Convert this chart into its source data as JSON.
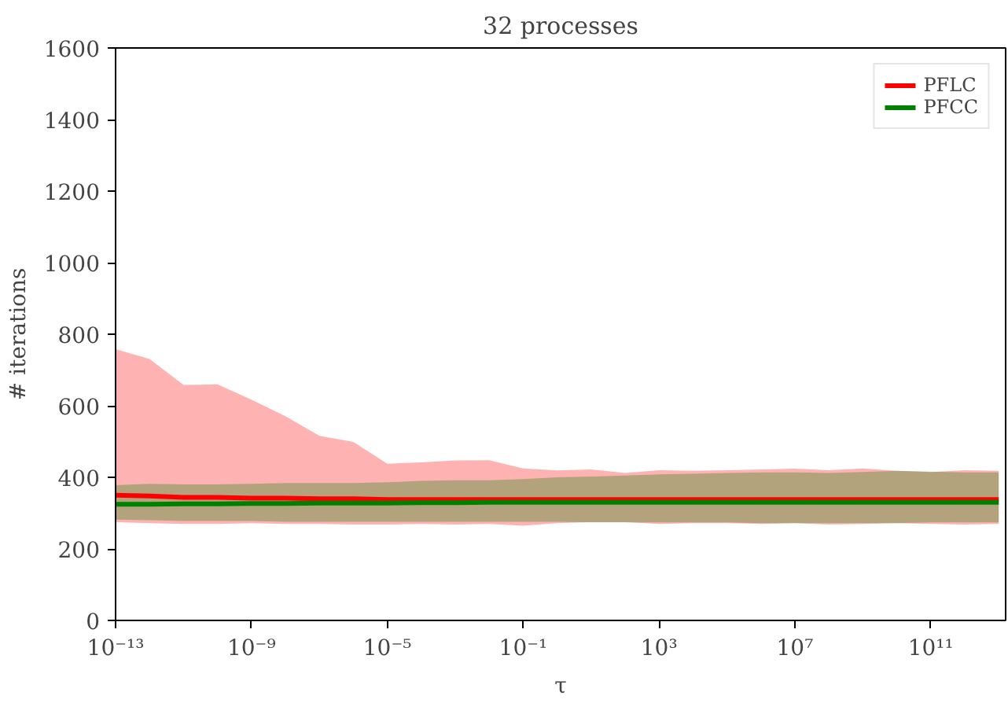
{
  "chart_data": {
    "type": "line",
    "title": "32 processes",
    "xlabel": "τ",
    "ylabel": "# iterations",
    "x": [
      1e-13,
      1e-12,
      1e-11,
      1e-10,
      1e-09,
      1e-08,
      1e-07,
      1e-06,
      1e-05,
      0.0001,
      0.001,
      0.01,
      0.1,
      1,
      10,
      100,
      1000.0,
      10000.0,
      100000.0,
      1000000.0,
      10000000.0,
      100000000.0,
      1000000000.0,
      10000000000.0,
      100000000000.0,
      1000000000000.0,
      10000000000000.0
    ],
    "series": [
      {
        "name": "PFLC",
        "color": "#ff0000",
        "values": [
          350,
          348,
          344,
          344,
          342,
          342,
          340,
          340,
          338,
          338,
          338,
          338,
          338,
          338,
          338,
          338,
          338,
          338,
          338,
          338,
          338,
          338,
          338,
          338,
          338,
          338,
          338
        ],
        "lower": [
          275,
          272,
          270,
          270,
          272,
          270,
          270,
          268,
          268,
          270,
          268,
          270,
          265,
          272,
          275,
          275,
          270,
          272,
          272,
          270,
          272,
          268,
          270,
          272,
          270,
          268,
          270
        ],
        "upper": [
          758,
          731,
          658,
          660,
          617,
          571,
          516,
          499,
          438,
          442,
          447,
          448,
          425,
          419,
          422,
          412,
          420,
          418,
          420,
          422,
          424,
          420,
          425,
          418,
          415,
          420,
          418
        ]
      },
      {
        "name": "PFCC",
        "color": "#008000",
        "values": [
          325,
          325,
          326,
          326,
          327,
          327,
          328,
          328,
          328,
          329,
          329,
          330,
          330,
          330,
          330,
          330,
          330,
          330,
          330,
          330,
          330,
          330,
          330,
          330,
          330,
          330,
          330
        ],
        "lower": [
          282,
          280,
          278,
          278,
          278,
          276,
          276,
          276,
          276,
          276,
          276,
          276,
          276,
          276,
          274,
          274,
          274,
          274,
          274,
          272,
          272,
          272,
          272,
          272,
          274,
          274,
          274
        ],
        "upper": [
          378,
          382,
          380,
          380,
          382,
          384,
          384,
          384,
          386,
          390,
          392,
          392,
          395,
          400,
          402,
          405,
          408,
          410,
          412,
          414,
          414,
          412,
          415,
          418,
          416,
          414,
          414
        ]
      }
    ],
    "log": "x",
    "xlim": [
      1e-13,
      16000000000000.0
    ],
    "xticks": [
      {
        "value": 1e-13,
        "label": "10⁻¹³"
      },
      {
        "value": 1e-09,
        "label": "10⁻⁹"
      },
      {
        "value": 1e-05,
        "label": "10⁻⁵"
      },
      {
        "value": 0.1,
        "label": "10⁻¹"
      },
      {
        "value": 1000,
        "label": "10³"
      },
      {
        "value": 10000000.0,
        "label": "10⁷"
      },
      {
        "value": 100000000000.0,
        "label": "10¹¹"
      }
    ],
    "ylim": [
      0,
      1600
    ],
    "yticks": [
      0,
      200,
      400,
      600,
      800,
      1000,
      1200,
      1400,
      1600
    ],
    "legend": "top right",
    "grid": false
  }
}
